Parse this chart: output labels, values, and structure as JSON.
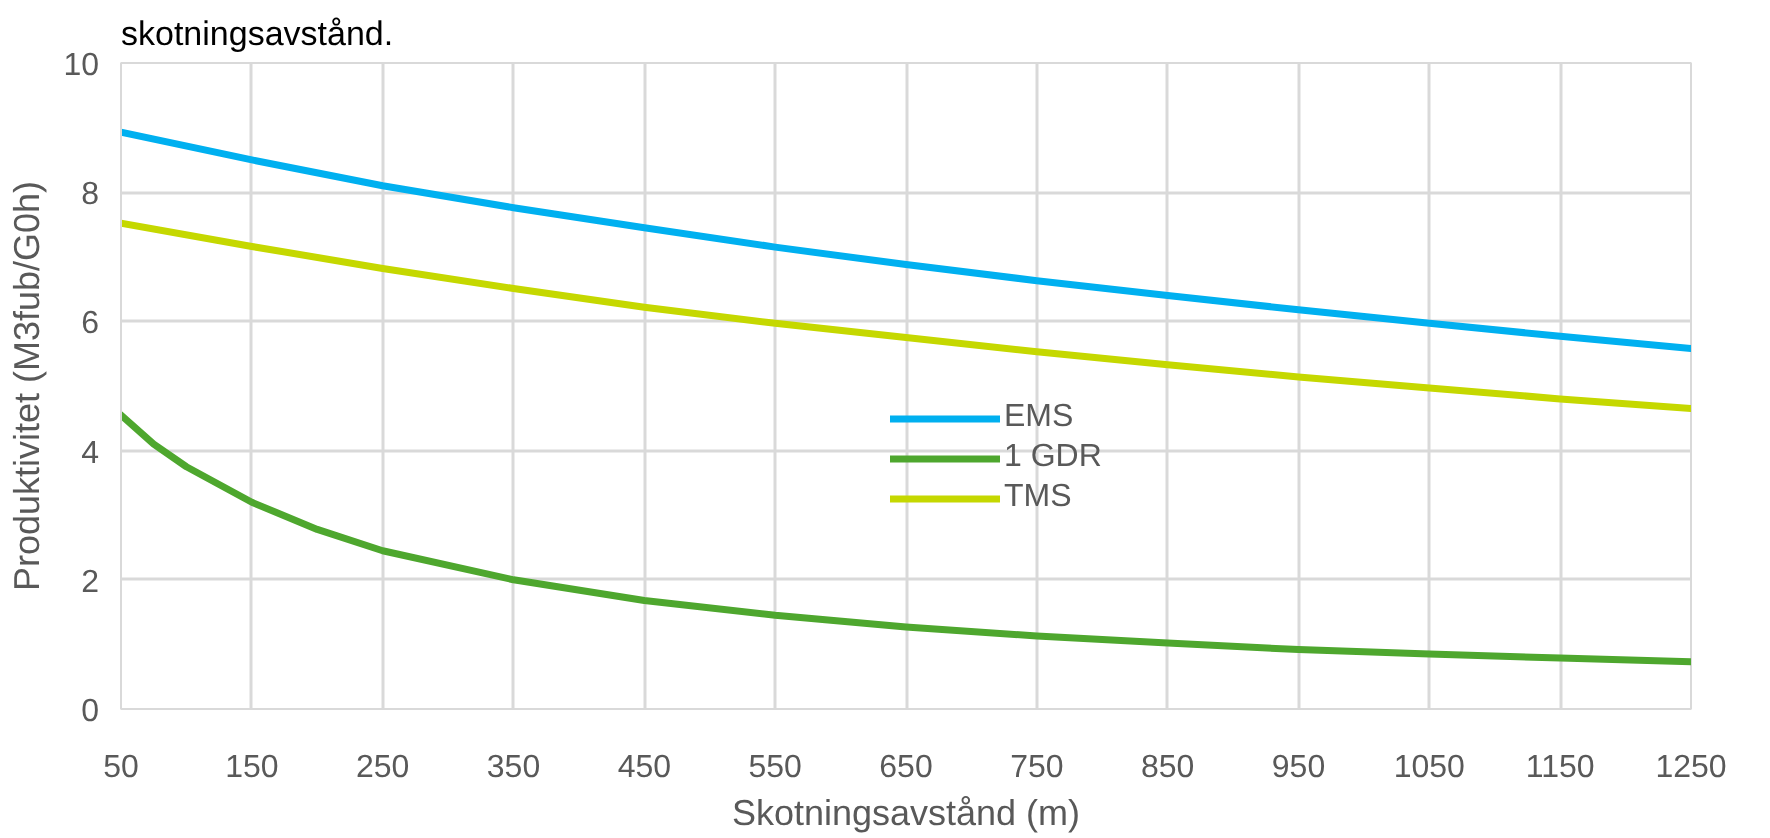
{
  "chart_data": {
    "type": "line",
    "annotations": [
      "skotningsavstånd."
    ],
    "xlabel": "Skotningsavstånd (m)",
    "ylabel": "Produktivitet (M3fub/G0h)",
    "xlim": [
      50,
      1250
    ],
    "xticks": [
      50,
      150,
      250,
      350,
      450,
      550,
      650,
      750,
      850,
      950,
      1050,
      1150,
      1250
    ],
    "ylim": [
      0,
      10
    ],
    "yticks": [
      0,
      2,
      4,
      6,
      8,
      10
    ],
    "grid": true,
    "legend": "center",
    "line_style": "solid",
    "marker": "none",
    "series": [
      {
        "name": "EMS",
        "color": "#00b0f0",
        "x": [
          50,
          150,
          250,
          350,
          450,
          550,
          650,
          750,
          850,
          950,
          1050,
          1150,
          1250
        ],
        "values": [
          8.93,
          8.5,
          8.1,
          7.76,
          7.45,
          7.15,
          6.88,
          6.63,
          6.4,
          6.18,
          5.97,
          5.77,
          5.58
        ]
      },
      {
        "name": "1 GDR",
        "color": "#4ea72e",
        "x": [
          50,
          75,
          100,
          150,
          200,
          250,
          350,
          450,
          550,
          650,
          750,
          850,
          950,
          1050,
          1150,
          1250
        ],
        "values": [
          4.55,
          4.1,
          3.75,
          3.2,
          2.78,
          2.45,
          2.0,
          1.68,
          1.45,
          1.27,
          1.13,
          1.02,
          0.92,
          0.85,
          0.79,
          0.73
        ]
      },
      {
        "name": "TMS",
        "color": "#c5d800",
        "x": [
          50,
          150,
          250,
          350,
          450,
          550,
          650,
          750,
          850,
          950,
          1050,
          1150,
          1250
        ],
        "values": [
          7.52,
          7.16,
          6.82,
          6.51,
          6.22,
          5.97,
          5.75,
          5.53,
          5.33,
          5.14,
          4.97,
          4.8,
          4.65
        ]
      }
    ]
  }
}
